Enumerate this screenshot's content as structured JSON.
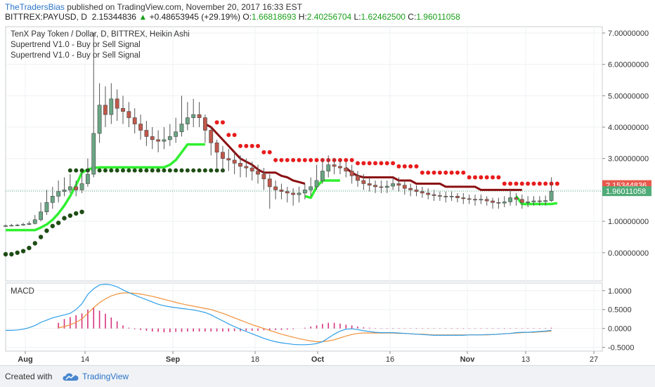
{
  "header": {
    "author": "TheTradersBias",
    "published_text": "published on TradingView.com, November 20, 2017 16:33 EST",
    "symbol": "BITTREX:PAYUSD, D",
    "last": "2.15344836",
    "change": "+0.48653945 (+29.19%)",
    "o_label": "O:",
    "o": "1.66818693",
    "h_label": "H:",
    "h": "2.40256704",
    "l_label": "L:",
    "l": "1.62462500",
    "c_label": "C:",
    "c": "1.96011058"
  },
  "legend": {
    "title": "TenX Pay Token / Dollar, D, BITTREX, Heikin Ashi",
    "ind1": "Supertrend V1.0 - Buy or Sell Signal",
    "ind2": "Supertrend V1.0 - Buy or Sell Signal",
    "macd": "MACD"
  },
  "footer": {
    "created_with": "Created with",
    "brand": "TradingView"
  },
  "colors": {
    "up_candle": "#6aa584",
    "down_candle": "#c0584a",
    "supertrend_up": "#2ff02f",
    "supertrend_down": "#8b0f12",
    "dots_up": "#1e4d14",
    "dots_down": "#e81c1c",
    "macd_line": "#2c9ee8",
    "signal_line": "#f0913a",
    "histogram": "#d6337c",
    "price_label_red": "#e8584c",
    "price_label_green": "#4fab77"
  },
  "chart_data": [
    {
      "type": "candlestick",
      "title": "TenX Pay Token / Dollar, D, BITTREX, Heikin Ashi",
      "x_ticks": [
        "Aug",
        "14",
        "Sep",
        "18",
        "Oct",
        "16",
        "Nov",
        "13",
        "27"
      ],
      "y_ticks": [
        "7.00000000",
        "6.00000000",
        "5.00000000",
        "4.00000000",
        "3.00000000",
        "2.00000000",
        "1.00000000",
        "0.00000000"
      ],
      "ylim": [
        -0.9,
        7.2
      ],
      "price_labels": [
        "2.15344836",
        "1.96011058"
      ],
      "candles": [
        [
          0.85,
          0.86,
          0.9,
          0.82
        ],
        [
          0.86,
          0.87,
          0.92,
          0.84
        ],
        [
          0.87,
          0.88,
          0.92,
          0.85
        ],
        [
          0.88,
          0.9,
          0.95,
          0.86
        ],
        [
          0.9,
          0.93,
          1.0,
          0.88
        ],
        [
          0.93,
          1.05,
          1.2,
          0.9
        ],
        [
          1.05,
          1.3,
          1.6,
          1.0
        ],
        [
          1.3,
          1.6,
          2.0,
          1.2
        ],
        [
          1.6,
          1.8,
          2.1,
          1.4
        ],
        [
          1.8,
          1.95,
          2.3,
          1.6
        ],
        [
          1.95,
          2.0,
          2.4,
          1.8
        ],
        [
          2.0,
          2.1,
          2.5,
          1.9
        ],
        [
          2.1,
          2.0,
          2.3,
          1.8
        ],
        [
          2.0,
          2.2,
          2.6,
          1.9
        ],
        [
          2.2,
          2.5,
          3.0,
          2.1
        ],
        [
          2.5,
          3.8,
          7.0,
          2.4
        ],
        [
          3.8,
          4.7,
          5.4,
          3.5
        ],
        [
          4.7,
          4.4,
          5.3,
          4.0
        ],
        [
          4.4,
          4.9,
          5.4,
          4.1
        ],
        [
          4.9,
          4.6,
          5.2,
          4.2
        ],
        [
          4.6,
          4.5,
          5.0,
          4.1
        ],
        [
          4.5,
          4.3,
          4.8,
          4.0
        ],
        [
          4.3,
          4.1,
          4.6,
          3.8
        ],
        [
          4.1,
          3.9,
          4.4,
          3.6
        ],
        [
          3.9,
          3.7,
          4.2,
          3.4
        ],
        [
          3.7,
          3.6,
          4.0,
          3.3
        ],
        [
          3.6,
          3.55,
          3.9,
          3.2
        ],
        [
          3.55,
          3.6,
          4.0,
          3.3
        ],
        [
          3.6,
          3.7,
          4.1,
          3.4
        ],
        [
          3.7,
          3.85,
          4.3,
          3.5
        ],
        [
          3.85,
          4.1,
          5.0,
          3.7
        ],
        [
          4.1,
          4.3,
          4.8,
          3.9
        ],
        [
          4.3,
          4.4,
          4.9,
          4.0
        ],
        [
          4.4,
          4.3,
          4.8,
          4.0
        ],
        [
          4.3,
          3.9,
          4.4,
          3.5
        ],
        [
          3.9,
          3.5,
          4.0,
          3.1
        ],
        [
          3.5,
          3.2,
          3.6,
          2.7
        ],
        [
          3.2,
          3.0,
          3.4,
          2.6
        ],
        [
          3.0,
          2.95,
          3.3,
          2.6
        ],
        [
          2.95,
          2.85,
          3.2,
          2.5
        ],
        [
          2.85,
          2.75,
          3.1,
          2.4
        ],
        [
          2.75,
          2.7,
          3.0,
          2.4
        ],
        [
          2.7,
          2.6,
          2.9,
          2.3
        ],
        [
          2.6,
          2.5,
          2.8,
          2.2
        ],
        [
          2.5,
          2.35,
          2.7,
          2.0
        ],
        [
          2.35,
          2.1,
          2.5,
          1.4
        ],
        [
          2.1,
          2.0,
          2.3,
          1.7
        ],
        [
          2.0,
          1.95,
          2.2,
          1.7
        ],
        [
          1.95,
          1.9,
          2.1,
          1.6
        ],
        [
          1.9,
          1.85,
          2.05,
          1.5
        ],
        [
          1.85,
          1.9,
          2.1,
          1.6
        ],
        [
          1.9,
          2.0,
          2.2,
          1.7
        ],
        [
          2.0,
          2.1,
          2.4,
          1.8
        ],
        [
          2.1,
          2.3,
          2.8,
          2.0
        ],
        [
          2.3,
          2.6,
          3.0,
          2.2
        ],
        [
          2.6,
          2.8,
          3.1,
          2.4
        ],
        [
          2.8,
          2.75,
          3.0,
          2.5
        ],
        [
          2.75,
          2.7,
          2.95,
          2.5
        ],
        [
          2.7,
          2.6,
          2.9,
          2.4
        ],
        [
          2.6,
          2.45,
          2.8,
          2.2
        ],
        [
          2.45,
          2.3,
          2.6,
          2.1
        ],
        [
          2.3,
          2.2,
          2.5,
          2.0
        ],
        [
          2.2,
          2.15,
          2.4,
          1.95
        ],
        [
          2.15,
          2.1,
          2.3,
          1.9
        ],
        [
          2.1,
          2.08,
          2.3,
          1.9
        ],
        [
          2.08,
          2.12,
          2.3,
          1.9
        ],
        [
          2.12,
          2.2,
          2.4,
          2.0
        ],
        [
          2.2,
          2.15,
          2.4,
          1.95
        ],
        [
          2.15,
          2.05,
          2.3,
          1.85
        ],
        [
          2.05,
          2.0,
          2.2,
          1.8
        ],
        [
          2.0,
          1.95,
          2.15,
          1.8
        ],
        [
          1.95,
          1.9,
          2.1,
          1.75
        ],
        [
          1.9,
          1.85,
          2.05,
          1.7
        ],
        [
          1.85,
          1.82,
          2.0,
          1.65
        ],
        [
          1.82,
          1.8,
          1.95,
          1.65
        ],
        [
          1.8,
          1.78,
          1.95,
          1.6
        ],
        [
          1.78,
          1.8,
          1.95,
          1.65
        ],
        [
          1.8,
          1.75,
          1.9,
          1.6
        ],
        [
          1.75,
          1.72,
          1.9,
          1.55
        ],
        [
          1.72,
          1.7,
          1.85,
          1.55
        ],
        [
          1.7,
          1.68,
          1.85,
          1.5
        ],
        [
          1.68,
          1.7,
          1.85,
          1.55
        ],
        [
          1.7,
          1.65,
          1.8,
          1.5
        ],
        [
          1.65,
          1.6,
          1.75,
          1.4
        ],
        [
          1.6,
          1.58,
          1.75,
          1.4
        ],
        [
          1.58,
          1.62,
          1.8,
          1.45
        ],
        [
          1.62,
          1.75,
          2.0,
          1.5
        ],
        [
          1.75,
          1.7,
          1.9,
          1.5
        ],
        [
          1.7,
          1.6,
          1.85,
          1.4
        ],
        [
          1.6,
          1.62,
          1.8,
          1.45
        ],
        [
          1.62,
          1.65,
          1.8,
          1.5
        ],
        [
          1.65,
          1.63,
          1.8,
          1.5
        ],
        [
          1.63,
          1.66,
          1.82,
          1.5
        ],
        [
          1.66,
          1.96,
          2.4,
          1.62
        ]
      ],
      "supertrend_down": [
        [
          null,
          null,
          null,
          null,
          null,
          null,
          null,
          null,
          null,
          null,
          null,
          null,
          null,
          null,
          null,
          null,
          null,
          null,
          null,
          null,
          null,
          null,
          null,
          null,
          null,
          null,
          null,
          null,
          null,
          null,
          null,
          null,
          null,
          null,
          4.1,
          4.0,
          3.8,
          3.6,
          3.4,
          3.2,
          3.0,
          2.9,
          2.8,
          2.65,
          2.55,
          2.55,
          2.55,
          2.45,
          2.4,
          2.3,
          2.25,
          2.2,
          null,
          null,
          null,
          null,
          null,
          null,
          2.7,
          2.55,
          2.45,
          2.4,
          2.4,
          2.4,
          2.4,
          2.4,
          2.4,
          2.3,
          2.3,
          2.3,
          2.2,
          2.2,
          2.2,
          2.2,
          2.2,
          2.1,
          2.1,
          2.1,
          2.1,
          2.1,
          2.1,
          2.0,
          2.0,
          2.0,
          2.0,
          2.0,
          2.0,
          2.0,
          2.0,
          null,
          null,
          null,
          null,
          null,
          null
        ]
      ],
      "supertrend_up": [
        0.72,
        0.72,
        0.72,
        0.72,
        0.72,
        0.72,
        0.8,
        0.9,
        1.05,
        1.25,
        1.5,
        1.8,
        2.15,
        2.55,
        2.65,
        2.7,
        2.72,
        2.72,
        2.72,
        2.72,
        2.72,
        2.72,
        2.72,
        2.72,
        2.72,
        2.72,
        2.72,
        2.72,
        2.8,
        2.95,
        3.2,
        3.45,
        3.45,
        3.45,
        3.45,
        null,
        null,
        null,
        null,
        null,
        null,
        null,
        null,
        null,
        null,
        null,
        null,
        null,
        null,
        null,
        null,
        1.8,
        1.75,
        2.1,
        2.3,
        2.3,
        2.3,
        2.3,
        null,
        null,
        null,
        null,
        null,
        null,
        null,
        null,
        null,
        null,
        null,
        null,
        null,
        null,
        null,
        null,
        null,
        null,
        null,
        null,
        null,
        null,
        null,
        null,
        null,
        null,
        null,
        null,
        null,
        1.8,
        1.55,
        1.55,
        1.55,
        1.55,
        1.55,
        1.55,
        1.58
      ]
    },
    {
      "type": "macd",
      "title": "MACD",
      "y_ticks": [
        "1.0000",
        "0.5000",
        "0.0000",
        "-0.5000"
      ],
      "ylim": [
        -0.6,
        1.2
      ],
      "series": [
        {
          "values": [
            -0.05,
            -0.05,
            -0.04,
            -0.02,
            0.02,
            0.08,
            0.16,
            0.22,
            0.28,
            0.32,
            0.36,
            0.4,
            0.5,
            0.65,
            0.9,
            1.05,
            1.15,
            1.17,
            1.15,
            1.1,
            1.02,
            0.95,
            0.88,
            0.82,
            0.76,
            0.7,
            0.64,
            0.6,
            0.57,
            0.55,
            0.53,
            0.51,
            0.49,
            0.46,
            0.42,
            0.36,
            0.28,
            0.2,
            0.12,
            0.05,
            -0.02,
            -0.08,
            -0.14,
            -0.2,
            -0.26,
            -0.31,
            -0.35,
            -0.38,
            -0.4,
            -0.42,
            -0.43,
            -0.43,
            -0.42,
            -0.4,
            -0.35,
            -0.25,
            -0.15,
            -0.07,
            -0.02,
            -0.01,
            -0.03,
            -0.06,
            -0.08,
            -0.1,
            -0.11,
            -0.11,
            -0.11,
            -0.12,
            -0.13,
            -0.14,
            -0.15,
            -0.16,
            -0.17,
            -0.18,
            -0.18,
            -0.18,
            -0.18,
            -0.18,
            -0.18,
            -0.17,
            -0.17,
            -0.17,
            -0.16,
            -0.16,
            -0.15,
            -0.14,
            -0.13,
            -0.11,
            -0.1,
            -0.1,
            -0.09,
            -0.08,
            -0.07,
            -0.05
          ]
        },
        {
          "values": [
            null,
            null,
            null,
            null,
            null,
            null,
            null,
            null,
            null,
            0.02,
            0.05,
            0.1,
            0.16,
            0.25,
            0.4,
            0.55,
            0.68,
            0.78,
            0.86,
            0.91,
            0.94,
            0.94,
            0.93,
            0.91,
            0.88,
            0.85,
            0.81,
            0.77,
            0.73,
            0.69,
            0.65,
            0.62,
            0.59,
            0.56,
            0.53,
            0.5,
            0.45,
            0.4,
            0.34,
            0.28,
            0.22,
            0.16,
            0.1,
            0.05,
            0.0,
            -0.05,
            -0.1,
            -0.15,
            -0.19,
            -0.23,
            -0.27,
            -0.3,
            -0.33,
            -0.35,
            -0.35,
            -0.33,
            -0.3,
            -0.25,
            -0.2,
            -0.16,
            -0.13,
            -0.12,
            -0.12,
            -0.12,
            -0.12,
            -0.12,
            -0.12,
            -0.13,
            -0.13,
            -0.14,
            -0.15,
            -0.15,
            -0.16,
            -0.17,
            -0.17,
            -0.17,
            -0.17,
            -0.17,
            -0.17,
            -0.17,
            -0.17,
            -0.17,
            -0.17,
            -0.16,
            -0.15,
            -0.14,
            -0.13,
            -0.12,
            -0.11,
            -0.1,
            -0.1,
            -0.09,
            -0.08,
            -0.07
          ]
        }
      ],
      "histogram": [
        0,
        0,
        0,
        0,
        0,
        0,
        0,
        0,
        0,
        0.15,
        0.25,
        0.3,
        0.35,
        0.4,
        0.5,
        0.55,
        0.47,
        0.39,
        0.29,
        0.19,
        0.08,
        0.02,
        -0.02,
        -0.04,
        -0.06,
        -0.08,
        -0.09,
        -0.1,
        -0.1,
        -0.09,
        -0.09,
        -0.08,
        -0.08,
        -0.08,
        -0.08,
        -0.08,
        -0.08,
        -0.08,
        -0.08,
        -0.07,
        -0.07,
        -0.06,
        -0.06,
        -0.06,
        -0.05,
        -0.05,
        -0.04,
        -0.04,
        -0.03,
        -0.02,
        0.0,
        0.02,
        0.05,
        0.08,
        0.12,
        0.15,
        0.15,
        0.13,
        0.1,
        0.08,
        0.05,
        0.03,
        0.02,
        0.01,
        0.01,
        0.01,
        0.01,
        0.01,
        0.01,
        0.01,
        0.01,
        0.01,
        0.01,
        0.01,
        0.01,
        0.01,
        0.01,
        0.01,
        0.01,
        0.01,
        0.01,
        0.01,
        0.01,
        0.01,
        0.01,
        0.01,
        0.01,
        0.01,
        0.01,
        0.01,
        0.01,
        0.01,
        0.01,
        0.02
      ]
    }
  ]
}
